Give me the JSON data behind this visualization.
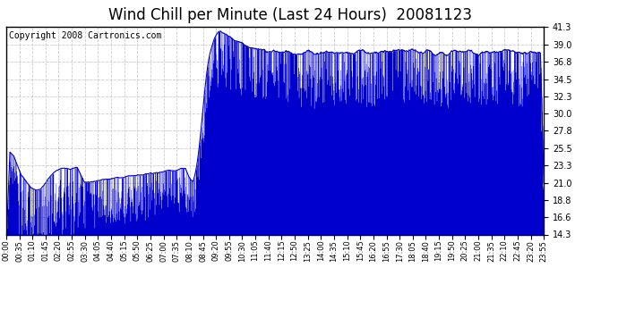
{
  "title": "Wind Chill per Minute (Last 24 Hours)  20081123",
  "copyright": "Copyright 2008 Cartronics.com",
  "yticks": [
    14.3,
    16.6,
    18.8,
    21.0,
    23.3,
    25.5,
    27.8,
    30.0,
    32.3,
    34.5,
    36.8,
    39.0,
    41.3
  ],
  "ymin": 14.3,
  "ymax": 41.3,
  "line_color": "#0000CC",
  "bg_color": "#ffffff",
  "grid_color": "#c0c0c0",
  "title_fontsize": 12,
  "copyright_fontsize": 7,
  "xtick_labels": [
    "00:00",
    "00:35",
    "01:10",
    "01:45",
    "02:20",
    "02:55",
    "03:30",
    "04:05",
    "04:40",
    "05:15",
    "05:50",
    "06:25",
    "07:00",
    "07:35",
    "08:10",
    "08:45",
    "09:20",
    "09:55",
    "10:30",
    "11:05",
    "11:40",
    "12:15",
    "12:50",
    "13:25",
    "14:00",
    "14:35",
    "15:10",
    "15:45",
    "16:20",
    "16:55",
    "17:30",
    "18:05",
    "18:40",
    "19:15",
    "19:50",
    "20:25",
    "21:00",
    "21:35",
    "22:10",
    "22:45",
    "23:20",
    "23:55"
  ]
}
